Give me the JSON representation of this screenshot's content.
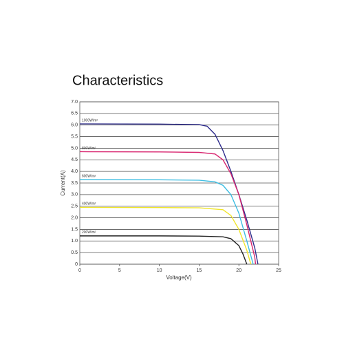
{
  "chart_data": {
    "type": "line",
    "title": "Characteristics",
    "xlabel": "Voltage(V)",
    "ylabel": "Current(A)",
    "xlim": [
      0,
      25
    ],
    "ylim": [
      0,
      7
    ],
    "xticks": [
      0,
      5,
      10,
      15,
      20,
      25
    ],
    "yticks": [
      0,
      0.5,
      {
        "value": 1,
        "label": "1.0"
      },
      1.5,
      {
        "value": 2,
        "label": "2.0"
      },
      2.5,
      {
        "value": 3,
        "label": "3.0"
      },
      3.5,
      {
        "value": 4,
        "label": "4.0"
      },
      4.5,
      {
        "value": 5,
        "label": "5.0"
      },
      5.5,
      {
        "value": 6,
        "label": "6.0"
      },
      6.5,
      {
        "value": 7,
        "label": "7.0"
      }
    ],
    "grid": true,
    "series": [
      {
        "name": "1000W/m²",
        "color": "#2e2c8c",
        "x": [
          0,
          10,
          15,
          16,
          17,
          18,
          19,
          20,
          21,
          22,
          22.4
        ],
        "values": [
          6.05,
          6.04,
          6.02,
          5.95,
          5.6,
          4.9,
          4.0,
          3.0,
          1.9,
          0.7,
          0
        ]
      },
      {
        "name": "800W/m²",
        "color": "#d8256f",
        "x": [
          0,
          10,
          15,
          17,
          18,
          19,
          20,
          21,
          21.5,
          22,
          22.1
        ],
        "values": [
          4.85,
          4.84,
          4.82,
          4.75,
          4.5,
          3.9,
          3.0,
          1.7,
          1.0,
          0.3,
          0
        ]
      },
      {
        "name": "600W/m²",
        "color": "#3dbde2",
        "x": [
          0,
          10,
          15,
          17,
          18,
          19,
          20,
          21,
          21.8
        ],
        "values": [
          3.65,
          3.64,
          3.62,
          3.55,
          3.4,
          3.0,
          2.2,
          1.0,
          0
        ]
      },
      {
        "name": "400W/m²",
        "color": "#f0e52a",
        "x": [
          0,
          10,
          15,
          18,
          19,
          20,
          21,
          21.5
        ],
        "values": [
          2.45,
          2.44,
          2.43,
          2.35,
          2.1,
          1.5,
          0.6,
          0
        ]
      },
      {
        "name": "200W/m²",
        "color": "#222222",
        "x": [
          0,
          10,
          15,
          18,
          19,
          20,
          20.5,
          21
        ],
        "values": [
          1.22,
          1.22,
          1.21,
          1.18,
          1.1,
          0.8,
          0.45,
          0
        ]
      }
    ]
  }
}
